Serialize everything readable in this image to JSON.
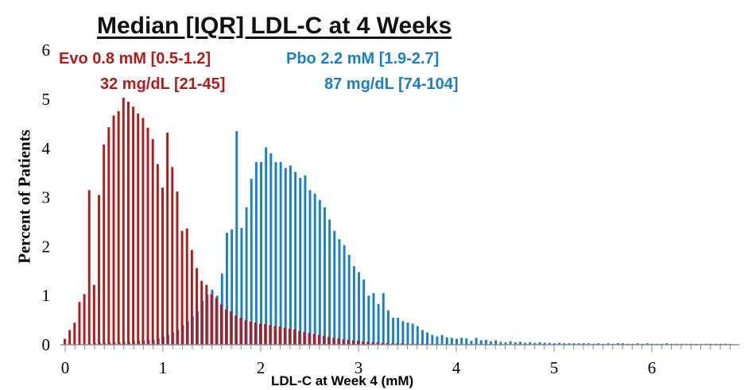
{
  "chart_data": {
    "type": "bar",
    "title": "Median [IQR] LDL-C at 4 Weeks",
    "xlabel": "LDL-C at Week 4 (mM)",
    "ylabel": "Percent of Patients",
    "xlim": [
      -0.05,
      6.9
    ],
    "ylim": [
      0,
      6
    ],
    "x_ticks": [
      0,
      1,
      2,
      3,
      4,
      5,
      6
    ],
    "y_ticks": [
      0,
      1,
      2,
      3,
      4,
      5,
      6
    ],
    "bin_width": 0.05,
    "colors": {
      "evo": "#b01c1c",
      "pbo": "#1b7fc1"
    },
    "annotations": {
      "evo_mm": "Evo  0.8 mM [0.5-1.2]",
      "evo_mgdl": "32 mg/dL [21-45]",
      "pbo_mm": "Pbo 2.2 mM [1.9-2.7]",
      "pbo_mgdl": "87 mg/dL [74-104]"
    },
    "series": [
      {
        "name": "Evo",
        "x": [
          0.0,
          0.05,
          0.1,
          0.15,
          0.2,
          0.25,
          0.3,
          0.35,
          0.4,
          0.45,
          0.5,
          0.55,
          0.6,
          0.65,
          0.7,
          0.75,
          0.8,
          0.85,
          0.9,
          0.95,
          1.0,
          1.05,
          1.1,
          1.15,
          1.2,
          1.25,
          1.3,
          1.35,
          1.4,
          1.45,
          1.5,
          1.55,
          1.6,
          1.65,
          1.7,
          1.75,
          1.8,
          1.85,
          1.9,
          1.95,
          2.0,
          2.05,
          2.1,
          2.15,
          2.2,
          2.25,
          2.3,
          2.35,
          2.4,
          2.45,
          2.5,
          2.55,
          2.6,
          2.65,
          2.7,
          2.75,
          2.8,
          2.85,
          2.9,
          2.95,
          3.0,
          3.05,
          3.1,
          3.15,
          3.2,
          3.25,
          3.3,
          3.35,
          3.4,
          3.45,
          3.5,
          3.55,
          3.6,
          3.65,
          3.7,
          3.75,
          3.8,
          3.85,
          3.9,
          3.95,
          4.0,
          4.05,
          4.1,
          4.15,
          4.2,
          4.25,
          4.3,
          4.35,
          4.4,
          4.45,
          4.5,
          4.55,
          4.6,
          4.65,
          4.7,
          4.75,
          4.8,
          4.85,
          4.9,
          4.95,
          5.0,
          5.05,
          5.1,
          5.15,
          5.2,
          5.25,
          5.3,
          5.35,
          5.4,
          5.45,
          5.5,
          5.55,
          5.6,
          5.65,
          5.7,
          5.75,
          5.8,
          5.85,
          5.9,
          5.95,
          6.0,
          6.05,
          6.1,
          6.15,
          6.2,
          6.25,
          6.3,
          6.35,
          6.4,
          6.45,
          6.5,
          6.55,
          6.6,
          6.65,
          6.7,
          6.75,
          6.8
        ],
        "values": [
          0.12,
          0.3,
          0.45,
          0.87,
          1.03,
          3.15,
          1.22,
          3.05,
          4.08,
          4.43,
          4.67,
          4.76,
          5.03,
          4.95,
          4.85,
          4.71,
          4.62,
          4.42,
          4.19,
          3.68,
          3.2,
          4.32,
          3.62,
          3.12,
          2.32,
          2.37,
          1.93,
          1.56,
          1.3,
          1.22,
          1.03,
          0.95,
          0.82,
          0.72,
          0.68,
          0.6,
          0.55,
          0.5,
          0.47,
          0.45,
          0.43,
          0.42,
          0.4,
          0.38,
          0.37,
          0.35,
          0.33,
          0.31,
          0.28,
          0.26,
          0.24,
          0.22,
          0.2,
          0.18,
          0.16,
          0.14,
          0.13,
          0.11,
          0.1,
          0.09,
          0.08,
          0.07,
          0.06,
          0.05,
          0.05,
          0.04,
          0.04,
          0.03,
          0.03,
          0.03,
          0.02,
          0.02,
          0.02,
          0.02,
          0.02,
          0.01,
          0.01,
          0.01,
          0.01,
          0.01,
          0.01,
          0.01,
          0.01,
          0.01,
          0.01,
          0.01,
          0.01,
          0.01,
          0.01,
          0.01,
          0.01,
          0.01,
          0.01,
          0.01,
          0.01,
          0.01,
          0.01,
          0.01,
          0.01,
          0.01,
          0.01,
          0.01,
          0.01,
          0.01,
          0.01,
          0.01,
          0.01,
          0.01,
          0.01,
          0.01,
          0.01,
          0.01,
          0.01,
          0.01,
          0.01,
          0.01,
          0.01,
          0.01,
          0.01,
          0.01,
          0.01,
          0.01,
          0.01,
          0.01,
          0.01,
          0.01,
          0.01,
          0.01,
          0.01,
          0.01,
          0.01,
          0.01,
          0.01,
          0.01,
          0.01,
          0.01,
          0.01
        ]
      },
      {
        "name": "Pbo",
        "x": [
          0.0,
          0.05,
          0.1,
          0.15,
          0.2,
          0.25,
          0.3,
          0.35,
          0.4,
          0.45,
          0.5,
          0.55,
          0.6,
          0.65,
          0.7,
          0.75,
          0.8,
          0.85,
          0.9,
          0.95,
          1.0,
          1.05,
          1.1,
          1.15,
          1.2,
          1.25,
          1.3,
          1.35,
          1.4,
          1.45,
          1.5,
          1.55,
          1.6,
          1.65,
          1.7,
          1.75,
          1.8,
          1.85,
          1.9,
          1.95,
          2.0,
          2.05,
          2.1,
          2.15,
          2.2,
          2.25,
          2.3,
          2.35,
          2.4,
          2.45,
          2.5,
          2.55,
          2.6,
          2.65,
          2.7,
          2.75,
          2.8,
          2.85,
          2.9,
          2.95,
          3.0,
          3.05,
          3.1,
          3.15,
          3.2,
          3.25,
          3.3,
          3.35,
          3.4,
          3.45,
          3.5,
          3.55,
          3.6,
          3.65,
          3.7,
          3.75,
          3.8,
          3.85,
          3.9,
          3.95,
          4.0,
          4.05,
          4.1,
          4.15,
          4.2,
          4.25,
          4.3,
          4.35,
          4.4,
          4.45,
          4.5,
          4.55,
          4.6,
          4.65,
          4.7,
          4.75,
          4.8,
          4.85,
          4.9,
          4.95,
          5.0,
          5.05,
          5.1,
          5.15,
          5.2,
          5.25,
          5.3,
          5.35,
          5.4,
          5.45,
          5.5,
          5.55,
          5.6,
          5.65,
          5.7,
          5.75,
          5.8,
          5.85,
          5.9,
          5.95,
          6.0,
          6.05,
          6.1,
          6.15,
          6.2,
          6.25,
          6.3,
          6.35,
          6.4,
          6.45,
          6.5,
          6.55,
          6.6,
          6.65,
          6.7,
          6.75,
          6.8
        ],
        "values": [
          0.0,
          0.0,
          0.0,
          0.01,
          0.01,
          0.02,
          0.03,
          0.04,
          0.04,
          0.05,
          0.05,
          0.05,
          0.06,
          0.06,
          0.07,
          0.08,
          0.08,
          0.09,
          0.1,
          0.13,
          0.17,
          0.2,
          0.25,
          0.3,
          0.4,
          0.48,
          0.58,
          0.68,
          0.9,
          1.02,
          1.12,
          1.0,
          1.45,
          2.28,
          2.35,
          4.35,
          2.38,
          2.8,
          3.38,
          3.72,
          3.72,
          4.02,
          3.9,
          3.72,
          3.72,
          3.6,
          3.65,
          3.52,
          3.4,
          3.45,
          3.15,
          3.08,
          2.95,
          2.8,
          2.55,
          2.32,
          2.15,
          2.03,
          1.83,
          1.6,
          1.48,
          1.33,
          1.0,
          1.05,
          0.83,
          1.05,
          0.7,
          0.55,
          0.55,
          0.48,
          0.45,
          0.43,
          0.38,
          0.3,
          0.25,
          0.2,
          0.17,
          0.2,
          0.15,
          0.14,
          0.12,
          0.14,
          0.13,
          0.08,
          0.14,
          0.09,
          0.1,
          0.07,
          0.09,
          0.06,
          0.05,
          0.07,
          0.05,
          0.06,
          0.04,
          0.05,
          0.04,
          0.05,
          0.04,
          0.04,
          0.03,
          0.04,
          0.03,
          0.03,
          0.03,
          0.03,
          0.03,
          0.03,
          0.02,
          0.03,
          0.02,
          0.03,
          0.02,
          0.03,
          0.03,
          0.02,
          0.02,
          0.03,
          0.02,
          0.03,
          0.02,
          0.02,
          0.02,
          0.03,
          0.02,
          0.02,
          0.02,
          0.02,
          0.02,
          0.02,
          0.01,
          0.02,
          0.02,
          0.02,
          0.02,
          0.02,
          0.02
        ]
      }
    ]
  }
}
